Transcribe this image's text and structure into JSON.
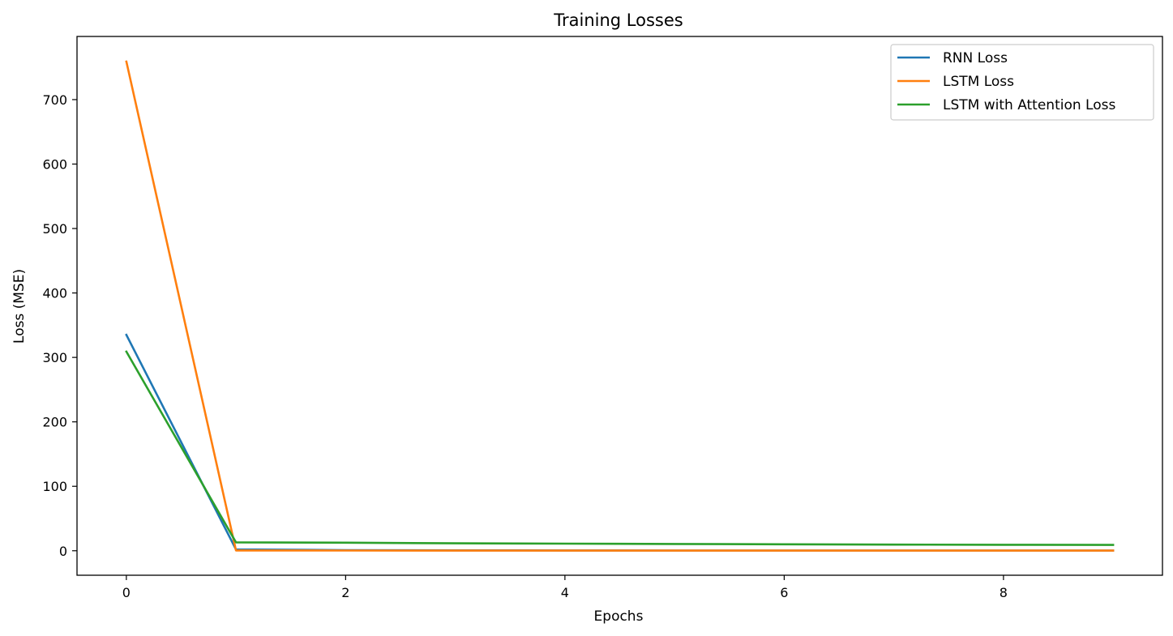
{
  "chart_data": {
    "type": "line",
    "title": "Training Losses",
    "xlabel": "Epochs",
    "ylabel": "Loss (MSE)",
    "x": [
      0,
      1,
      2,
      3,
      4,
      5,
      6,
      7,
      8,
      9
    ],
    "xlim": [
      -0.45,
      9.45
    ],
    "ylim": [
      -38,
      798
    ],
    "xticks": [
      0,
      2,
      4,
      6,
      8
    ],
    "yticks": [
      0,
      100,
      200,
      300,
      400,
      500,
      600,
      700
    ],
    "grid": false,
    "legend_position": "top-right",
    "series": [
      {
        "name": "RNN Loss",
        "color": "#1f77b4",
        "values": [
          335,
          2,
          1,
          0.6,
          0.5,
          0.4,
          0.3,
          0.3,
          0.3,
          0.3
        ]
      },
      {
        "name": "LSTM Loss",
        "color": "#ff7f0e",
        "values": [
          759,
          0.5,
          0.3,
          0.2,
          0.2,
          0.2,
          0.2,
          0.2,
          0.2,
          0.2
        ]
      },
      {
        "name": "LSTM with Attention Loss",
        "color": "#2ca02c",
        "values": [
          309,
          13,
          12.5,
          11.5,
          11,
          10.5,
          10,
          9.5,
          9.3,
          9
        ]
      }
    ]
  }
}
